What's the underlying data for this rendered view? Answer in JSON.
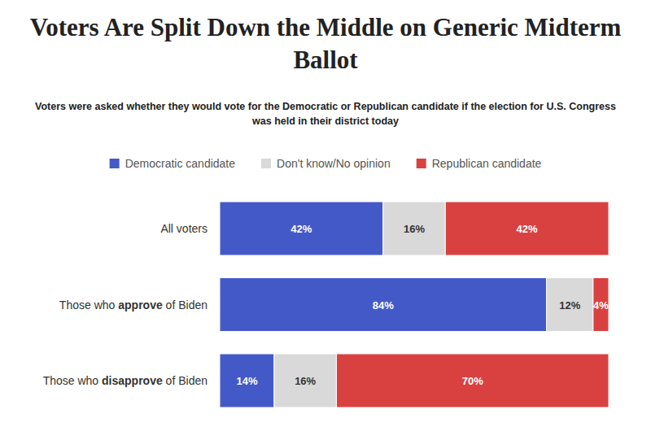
{
  "chart_data": {
    "type": "bar",
    "orientation": "horizontal",
    "stacked": true,
    "title": "Voters Are Split Down the Middle on Generic Midterm Ballot",
    "subtitle": "Voters were asked whether they would vote for the Democratic or Republican candidate if the election for U.S. Congress was held in their district today",
    "categories": [
      "All voters",
      "Those who approve of Biden",
      "Those who disapprove of Biden"
    ],
    "series": [
      {
        "name": "Democratic candidate",
        "color": "#4459c8",
        "values": [
          42,
          84,
          14
        ],
        "value_labels": [
          "42%",
          "84%",
          "14%"
        ]
      },
      {
        "name": "Don't know/No opinion",
        "color": "#d9d9d9",
        "values": [
          16,
          12,
          16
        ],
        "value_labels": [
          "16%",
          "12%",
          "16%"
        ]
      },
      {
        "name": "Republican candidate",
        "color": "#d94141",
        "values": [
          42,
          4,
          70
        ],
        "value_labels": [
          "42%",
          "4%",
          "70%"
        ]
      }
    ],
    "xlim": [
      0,
      100
    ],
    "legend": "top",
    "data_labels": true,
    "tick_labels": false,
    "grid": false
  }
}
